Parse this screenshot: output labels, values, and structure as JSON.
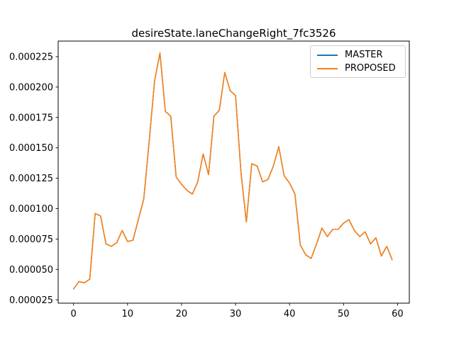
{
  "figure": {
    "title": "desireState.laneChangeRight_7fc3526",
    "background_color": "#ffffff",
    "text_color": "#000000"
  },
  "chart_data": {
    "type": "line",
    "title": "desireState.laneChangeRight_7fc3526",
    "xlabel": "",
    "ylabel": "",
    "grid": false,
    "legend": {
      "position": "upper right",
      "entries": [
        "MASTER",
        "PROPOSED"
      ],
      "border_color": "#cccccc"
    },
    "xlim": [
      -2.95,
      61.95
    ],
    "ylim": [
      2.22e-05,
      0.000238
    ],
    "xticks": [
      0,
      10,
      20,
      30,
      40,
      50,
      60
    ],
    "yticks": [
      2.5e-05,
      5e-05,
      7.5e-05,
      0.0001,
      0.000125,
      0.00015,
      0.000175,
      0.0002,
      0.000225
    ],
    "ytick_labels": [
      "0.000025",
      "0.000050",
      "0.000075",
      "0.000100",
      "0.000125",
      "0.000150",
      "0.000175",
      "0.000200",
      "0.000225"
    ],
    "x": [
      0,
      1,
      2,
      3,
      4,
      5,
      6,
      7,
      8,
      9,
      10,
      11,
      12,
      13,
      14,
      15,
      16,
      17,
      18,
      19,
      20,
      21,
      22,
      23,
      24,
      25,
      26,
      27,
      28,
      29,
      30,
      31,
      32,
      33,
      34,
      35,
      36,
      37,
      38,
      39,
      40,
      41,
      42,
      43,
      44,
      45,
      46,
      47,
      48,
      49,
      50,
      51,
      52,
      53,
      54,
      55,
      56,
      57,
      58,
      59
    ],
    "series": [
      {
        "name": "MASTER",
        "color": "#1f77b4",
        "values": [
          3.4e-05,
          4e-05,
          3.9e-05,
          4.2e-05,
          9.6e-05,
          9.4e-05,
          7.1e-05,
          6.9e-05,
          7.2e-05,
          8.2e-05,
          7.3e-05,
          7.4e-05,
          9.1e-05,
          0.000108,
          0.000155,
          0.000205,
          0.000228,
          0.00018,
          0.000176,
          0.000126,
          0.00012,
          0.000115,
          0.000112,
          0.000122,
          0.000145,
          0.000128,
          0.000176,
          0.000181,
          0.000212,
          0.000197,
          0.000193,
          0.00013,
          8.9e-05,
          0.000137,
          0.000135,
          0.000122,
          0.000124,
          0.000135,
          0.000151,
          0.000127,
          0.000121,
          0.000112,
          7e-05,
          6.2e-05,
          5.9e-05,
          7.1e-05,
          8.4e-05,
          7.7e-05,
          8.3e-05,
          8.3e-05,
          8.8e-05,
          9.1e-05,
          8.2e-05,
          7.7e-05,
          8.1e-05,
          7.1e-05,
          7.6e-05,
          6.1e-05,
          6.9e-05,
          5.8e-05
        ]
      },
      {
        "name": "PROPOSED",
        "color": "#ff7f0e",
        "values": [
          3.4e-05,
          4e-05,
          3.9e-05,
          4.2e-05,
          9.6e-05,
          9.4e-05,
          7.1e-05,
          6.9e-05,
          7.2e-05,
          8.2e-05,
          7.3e-05,
          7.4e-05,
          9.1e-05,
          0.000108,
          0.000155,
          0.000205,
          0.000228,
          0.00018,
          0.000176,
          0.000126,
          0.00012,
          0.000115,
          0.000112,
          0.000122,
          0.000145,
          0.000128,
          0.000176,
          0.000181,
          0.000212,
          0.000197,
          0.000193,
          0.00013,
          8.9e-05,
          0.000137,
          0.000135,
          0.000122,
          0.000124,
          0.000135,
          0.000151,
          0.000127,
          0.000121,
          0.000112,
          7e-05,
          6.2e-05,
          5.9e-05,
          7.1e-05,
          8.4e-05,
          7.7e-05,
          8.3e-05,
          8.3e-05,
          8.8e-05,
          9.1e-05,
          8.2e-05,
          7.7e-05,
          8.1e-05,
          7.1e-05,
          7.6e-05,
          6.1e-05,
          6.9e-05,
          5.8e-05
        ]
      }
    ]
  }
}
